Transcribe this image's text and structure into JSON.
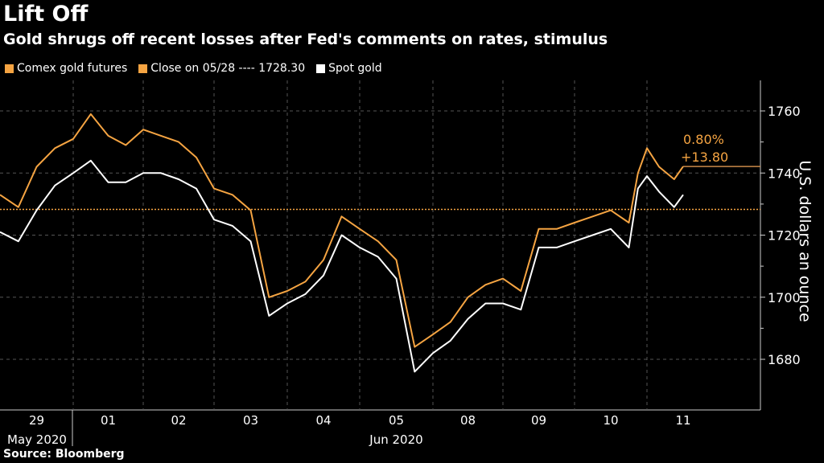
{
  "title": "Lift Off",
  "subtitle": "Gold shrugs off recent losses after Fed's comments on rates, stimulus",
  "source": "Source: Bloomberg",
  "legend": [
    {
      "label": "Comex gold futures",
      "color": "#f5a442"
    },
    {
      "label": "Close on 05/28 ---- 1728.30",
      "color": "#f5a442"
    },
    {
      "label": "Spot gold",
      "color": "#ffffff"
    }
  ],
  "colors": {
    "futures": "#f5a442",
    "spot": "#ffffff",
    "close_line": "#f5a442",
    "grid": "#555555"
  },
  "chart_data": {
    "type": "line",
    "title": "Lift Off",
    "ylabel": "U.S. dollars an ounce",
    "ylim": [
      1665,
      1770
    ],
    "yticks": [
      1680,
      1700,
      1720,
      1740,
      1760
    ],
    "ytick_labels": [
      "1680",
      "1700",
      "1720",
      "1740",
      "1760"
    ],
    "y_axis_side": "right",
    "grid": true,
    "legend_position": "top-left",
    "days": [
      "29",
      "01",
      "02",
      "03",
      "04",
      "05",
      "08",
      "09",
      "10",
      "11"
    ],
    "period_labels": [
      {
        "label": "May 2020",
        "day": "29"
      },
      {
        "label": "Jun 2020",
        "day": "05"
      }
    ],
    "reference_line": {
      "label": "Close on 05/28",
      "value": 1728.3
    },
    "annotation": {
      "pct": "0.80%",
      "change": "+13.80",
      "last_value": 1742.1
    },
    "x": [
      "05/29 00h",
      "05/29 06h",
      "05/29 12h",
      "05/29 18h",
      "06/01 00h",
      "06/01 06h",
      "06/01 12h",
      "06/01 18h",
      "06/02 00h",
      "06/02 06h",
      "06/02 12h",
      "06/02 18h",
      "06/03 00h",
      "06/03 06h",
      "06/03 12h",
      "06/03 18h",
      "06/04 00h",
      "06/04 06h",
      "06/04 12h",
      "06/04 18h",
      "06/05 00h",
      "06/05 06h",
      "06/05 12h",
      "06/05 18h",
      "06/08 00h",
      "06/08 06h",
      "06/08 12h",
      "06/08 18h",
      "06/09 00h",
      "06/09 06h",
      "06/09 12h",
      "06/09 18h",
      "06/10 00h",
      "06/10 06h",
      "06/10 12h",
      "06/10 18h",
      "06/10 21h",
      "06/11 00h",
      "06/11 04h",
      "06/11 09h",
      "06/11 12h"
    ],
    "series": [
      {
        "name": "Comex gold futures",
        "values": [
          1733,
          1729,
          1742,
          1748,
          1751,
          1759,
          1752,
          1749,
          1754,
          1752,
          1750,
          1745,
          1735,
          1733,
          1728,
          1700,
          1702,
          1705,
          1712,
          1726,
          1722,
          1718,
          1712,
          1684,
          1688,
          1692,
          1700,
          1704,
          1706,
          1702,
          1722,
          1722,
          1724,
          1726,
          1728,
          1724,
          1740,
          1748,
          1742,
          1738,
          1742.1
        ]
      },
      {
        "name": "Spot gold",
        "values": [
          1721,
          1718,
          1728,
          1736,
          1740,
          1744,
          1737,
          1737,
          1740,
          1740,
          1738,
          1735,
          1725,
          1723,
          1718,
          1694,
          1698,
          1701,
          1707,
          1720,
          1716,
          1713,
          1706,
          1676,
          1682,
          1686,
          1693,
          1698,
          1698,
          1696,
          1716,
          1716,
          1718,
          1720,
          1722,
          1716,
          1735,
          1739,
          1734,
          1729,
          1733
        ]
      }
    ]
  }
}
